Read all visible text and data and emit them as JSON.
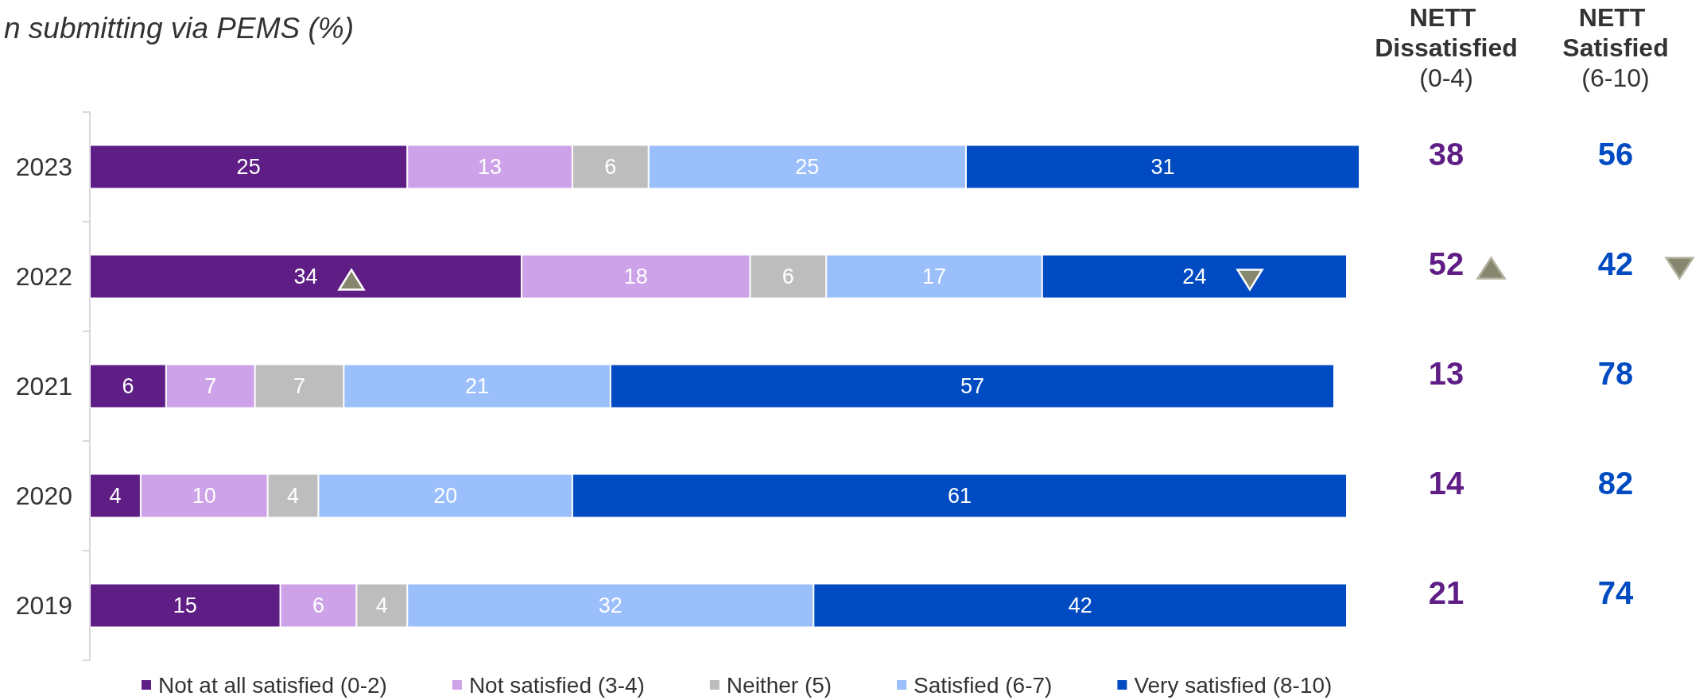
{
  "chart_data": {
    "type": "bar",
    "title": "n submitting via PEMS (%)",
    "orientation": "horizontal",
    "stacked": true,
    "categories": [
      "2023",
      "2022",
      "2021",
      "2020",
      "2019"
    ],
    "series": [
      {
        "name": "Not at all satisfied (0-2)",
        "color": "#5f1e85",
        "values": [
          25,
          34,
          6,
          4,
          15
        ]
      },
      {
        "name": "Not satisfied (3-4)",
        "color": "#cda2e8",
        "values": [
          13,
          18,
          7,
          10,
          6
        ]
      },
      {
        "name": "Neither (5)",
        "color": "#bdbdbd",
        "values": [
          6,
          6,
          7,
          4,
          4
        ]
      },
      {
        "name": "Satisfied (6-7)",
        "color": "#9bbffb",
        "values": [
          25,
          17,
          21,
          20,
          32
        ]
      },
      {
        "name": "Very satisfied (8-10)",
        "color": "#004bc2",
        "values": [
          31,
          24,
          57,
          61,
          42
        ]
      }
    ],
    "xlim": [
      0,
      100
    ],
    "data_labels": true,
    "legend": "bottom",
    "grid": false,
    "tick_labels": "y",
    "annotations": [
      "NETT Dissatisfied",
      "(0-4)",
      "NETT Satisfied",
      "(6-10)",
      "38",
      "56",
      "52",
      "42",
      "13",
      "78",
      "14",
      "82",
      "21",
      "74"
    ]
  }
}
